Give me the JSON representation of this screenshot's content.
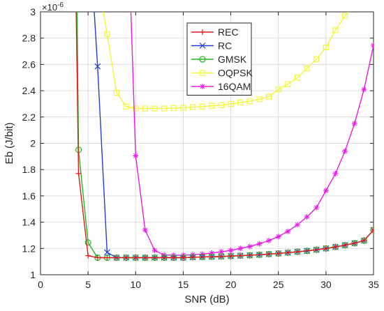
{
  "chart_data": {
    "type": "line",
    "xlabel": "SNR (dB)",
    "ylabel": "Eb (J/bit)",
    "y_exponent": "×10^-6",
    "xlim": [
      0,
      35
    ],
    "ylim": [
      1,
      3
    ],
    "xticks": [
      0,
      5,
      10,
      15,
      20,
      25,
      30,
      35
    ],
    "yticks": [
      1,
      1.2,
      1.4,
      1.6,
      1.8,
      2,
      2.2,
      2.4,
      2.6,
      2.8,
      3
    ],
    "grid": true,
    "legend_position": "top-center",
    "series": [
      {
        "name": "REC",
        "color": "#e41a1c",
        "marker": "plus",
        "x": [
          3.75,
          4,
          5,
          6,
          7,
          8,
          9,
          10,
          11,
          12,
          13,
          14,
          15,
          16,
          17,
          18,
          19,
          20,
          21,
          22,
          23,
          24,
          25,
          26,
          27,
          28,
          29,
          30,
          31,
          32,
          33,
          34,
          35
        ],
        "y": [
          3.0,
          1.77,
          1.145,
          1.13,
          1.13,
          1.13,
          1.13,
          1.13,
          1.13,
          1.13,
          1.13,
          1.13,
          1.13,
          1.133,
          1.135,
          1.137,
          1.139,
          1.142,
          1.145,
          1.148,
          1.152,
          1.157,
          1.162,
          1.168,
          1.175,
          1.182,
          1.19,
          1.2,
          1.212,
          1.225,
          1.24,
          1.26,
          1.34
        ]
      },
      {
        "name": "RC",
        "color": "#1f3fd6",
        "marker": "x",
        "x": [
          5.65,
          6,
          7,
          8,
          9,
          10,
          11,
          12,
          13,
          14,
          15,
          16,
          17,
          18,
          19,
          20,
          21,
          22,
          23,
          24,
          25,
          26,
          27,
          28,
          29,
          30,
          31,
          32,
          33,
          34,
          35
        ],
        "y": [
          3.0,
          2.585,
          1.17,
          1.13,
          1.13,
          1.13,
          1.13,
          1.13,
          1.13,
          1.13,
          1.13,
          1.133,
          1.135,
          1.137,
          1.139,
          1.142,
          1.145,
          1.148,
          1.152,
          1.157,
          1.162,
          1.168,
          1.175,
          1.182,
          1.19,
          1.2,
          1.212,
          1.225,
          1.24,
          1.26,
          1.34
        ]
      },
      {
        "name": "GMSK",
        "color": "#22b822",
        "marker": "circle",
        "x": [
          3.85,
          4,
          5,
          6,
          7,
          8,
          9,
          10,
          11,
          12,
          13,
          14,
          15,
          16,
          17,
          18,
          19,
          20,
          21,
          22,
          23,
          24,
          25,
          26,
          27,
          28,
          29,
          30,
          31,
          32,
          33,
          34,
          35
        ],
        "y": [
          3.0,
          1.95,
          1.245,
          1.13,
          1.13,
          1.13,
          1.13,
          1.13,
          1.13,
          1.13,
          1.13,
          1.13,
          1.13,
          1.133,
          1.135,
          1.137,
          1.139,
          1.142,
          1.145,
          1.148,
          1.152,
          1.157,
          1.162,
          1.168,
          1.175,
          1.182,
          1.19,
          1.2,
          1.212,
          1.225,
          1.24,
          1.26,
          1.34
        ]
      },
      {
        "name": "OQPSK",
        "color": "#f5f53a",
        "marker": "square",
        "x": [
          6.6,
          7,
          8,
          9,
          10,
          11,
          12,
          13,
          14,
          15,
          16,
          17,
          18,
          19,
          20,
          21,
          22,
          23,
          24,
          25,
          26,
          27,
          28,
          29,
          30,
          31,
          32,
          32.3
        ],
        "y": [
          3.0,
          2.83,
          2.385,
          2.28,
          2.265,
          2.265,
          2.265,
          2.265,
          2.268,
          2.27,
          2.275,
          2.28,
          2.285,
          2.29,
          2.3,
          2.31,
          2.32,
          2.335,
          2.355,
          2.41,
          2.45,
          2.5,
          2.57,
          2.64,
          2.73,
          2.86,
          2.97,
          3.0
        ]
      },
      {
        "name": "16QAM",
        "color": "#e81be8",
        "marker": "star",
        "x": [
          9.5,
          10,
          11,
          12,
          13,
          14,
          15,
          16,
          17,
          18,
          19,
          20,
          21,
          22,
          23,
          24,
          25,
          26,
          27,
          28,
          29,
          30,
          31,
          32,
          33,
          34,
          35
        ],
        "y": [
          3.0,
          1.905,
          1.34,
          1.185,
          1.15,
          1.148,
          1.148,
          1.152,
          1.157,
          1.165,
          1.175,
          1.185,
          1.2,
          1.215,
          1.235,
          1.26,
          1.29,
          1.33,
          1.38,
          1.44,
          1.51,
          1.64,
          1.77,
          1.94,
          2.15,
          2.41,
          2.745
        ]
      }
    ]
  }
}
